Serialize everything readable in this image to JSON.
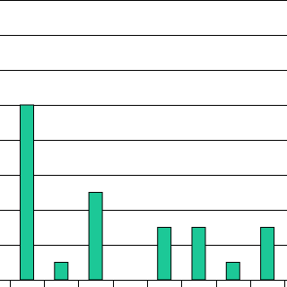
{
  "chart_data": {
    "type": "bar",
    "categories": [
      null,
      null,
      null,
      null,
      null,
      null,
      null,
      null
    ],
    "values": [
      5,
      0.5,
      2.5,
      0,
      1.5,
      1.5,
      0.5,
      1.5
    ],
    "color": "#1cc897",
    "ylim": [
      0,
      8
    ],
    "yticks": [
      0,
      1,
      2,
      3,
      4,
      5,
      6,
      7,
      8
    ],
    "grid": true
  }
}
